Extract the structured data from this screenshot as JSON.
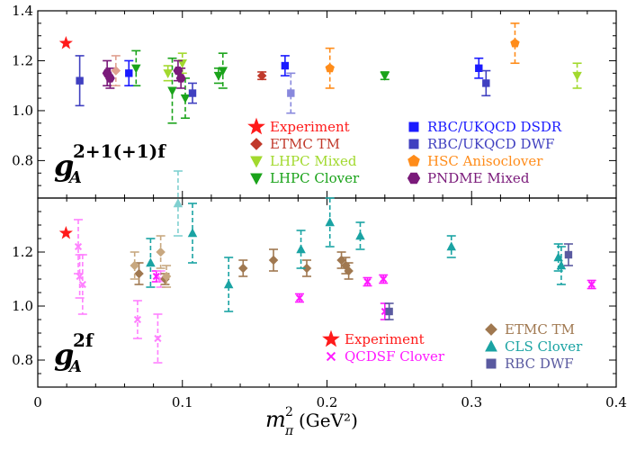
{
  "chart_data": [
    {
      "type": "scatter",
      "panel": "top",
      "panel_label": {
        "base": "g",
        "sub": "A",
        "sup": "2+1(+1)f"
      },
      "xlim": [
        0,
        0.4
      ],
      "ylim": [
        0.65,
        1.4
      ],
      "yticks": [
        0.8,
        1.0,
        1.2,
        1.4
      ],
      "legend_placement": "bottom-right",
      "series": [
        {
          "name": "Experiment",
          "color": "#ff1a1a",
          "marker": "star",
          "dashed": false,
          "points": [
            [
              0.0195,
              1.27,
              0
            ]
          ]
        },
        {
          "name": "ETMC TM",
          "color": "#c0392b",
          "marker": "diamond",
          "dashed": false,
          "points": [
            [
              0.155,
              1.14,
              0.015
            ]
          ]
        },
        {
          "name": "LHPC Mixed",
          "color": "#a2d92e",
          "marker": "tri-down",
          "dashed": true,
          "points": [
            [
              0.09,
              1.15,
              0.03
            ],
            [
              0.1,
              1.19,
              0.04
            ],
            [
              0.373,
              1.14,
              0.05
            ]
          ]
        },
        {
          "name": "LHPC Clover",
          "color": "#1aa31a",
          "marker": "tri-down",
          "dashed": true,
          "points": [
            [
              0.068,
              1.17,
              0.07
            ],
            [
              0.093,
              1.08,
              0.13
            ],
            [
              0.102,
              1.05,
              0.08
            ],
            [
              0.125,
              1.14,
              0.03
            ],
            [
              0.128,
              1.16,
              0.07
            ],
            [
              0.24,
              1.14,
              0.015
            ]
          ]
        },
        {
          "name": "RBC/UKQCD DSDR",
          "color": "#1a1aff",
          "marker": "square",
          "dashed": false,
          "points": [
            [
              0.063,
              1.15,
              0.05
            ],
            [
              0.171,
              1.18,
              0.04
            ],
            [
              0.305,
              1.17,
              0.04
            ]
          ]
        },
        {
          "name": "RBC/UKQCD DWF",
          "color": "#4040c0",
          "marker": "square",
          "dashed": false,
          "points": [
            [
              0.029,
              1.12,
              0.1
            ],
            [
              0.107,
              1.07,
              0.04
            ],
            [
              0.31,
              1.11,
              0.05
            ]
          ]
        },
        {
          "name": "HSC Anisoclover",
          "color": "#ff8c1a",
          "marker": "pentagon",
          "dashed": true,
          "points": [
            [
              0.202,
              1.17,
              0.08
            ],
            [
              0.33,
              1.27,
              0.08
            ]
          ]
        },
        {
          "name": "PNDME Mixed",
          "color": "#7a1a7a",
          "marker": "hexagon",
          "dashed": false,
          "points": [
            [
              0.048,
              1.15,
              0.05
            ],
            [
              0.05,
              1.13,
              0.04
            ],
            [
              0.097,
              1.16,
              0.04
            ],
            [
              0.099,
              1.13,
              0.04
            ]
          ]
        },
        {
          "name": "",
          "color": "#8888dd",
          "marker": "square",
          "dashed": true,
          "points": [
            [
              0.175,
              1.07,
              0.08
            ]
          ]
        },
        {
          "name": "",
          "color": "#e0a090",
          "marker": "diamond",
          "dashed": true,
          "points": [
            [
              0.054,
              1.16,
              0.06
            ]
          ]
        }
      ]
    },
    {
      "type": "scatter",
      "panel": "bottom",
      "panel_label": {
        "base": "g",
        "sub": "A",
        "sup": "2f"
      },
      "xlim": [
        0,
        0.4
      ],
      "ylim": [
        0.7,
        1.4
      ],
      "xticks": [
        0,
        0.1,
        0.2,
        0.3,
        0.4
      ],
      "yticks": [
        0.8,
        1.0,
        1.2
      ],
      "xlabel": {
        "base": "m",
        "sub": "π",
        "sup": "2",
        "unit": "(GeV²)"
      },
      "legend_placement": "bottom-right",
      "series": [
        {
          "name": "Experiment",
          "color": "#ff1a1a",
          "marker": "star",
          "dashed": false,
          "points": [
            [
              0.0195,
              1.27,
              0
            ]
          ]
        },
        {
          "name": "QCDSF Clover",
          "color": "#ff1aff",
          "marker": "x",
          "dashed": false,
          "points": [
            [
              0.082,
              1.11,
              0.02
            ],
            [
              0.181,
              1.03,
              0.015
            ],
            [
              0.228,
              1.09,
              0.015
            ],
            [
              0.239,
              1.1,
              0.015
            ],
            [
              0.24,
              0.98,
              0.03
            ],
            [
              0.383,
              1.08,
              0.015
            ]
          ]
        },
        {
          "name": "",
          "color": "#ff80ff",
          "marker": "x",
          "dashed": true,
          "points": [
            [
              0.028,
              1.22,
              0.1
            ],
            [
              0.029,
              1.11,
              0.08
            ],
            [
              0.031,
              1.08,
              0.11
            ],
            [
              0.069,
              0.95,
              0.07
            ],
            [
              0.083,
              0.88,
              0.09
            ],
            [
              0.085,
              1.1,
              0.03
            ]
          ]
        },
        {
          "name": "ETMC TM",
          "color": "#a07850",
          "marker": "diamond",
          "dashed": false,
          "points": [
            [
              0.07,
              1.12,
              0.04
            ],
            [
              0.088,
              1.1,
              0.02
            ],
            [
              0.142,
              1.14,
              0.03
            ],
            [
              0.163,
              1.17,
              0.04
            ],
            [
              0.186,
              1.14,
              0.03
            ],
            [
              0.21,
              1.17,
              0.03
            ],
            [
              0.213,
              1.15,
              0.03
            ],
            [
              0.215,
              1.13,
              0.03
            ]
          ]
        },
        {
          "name": "",
          "color": "#c8a880",
          "marker": "diamond",
          "dashed": true,
          "points": [
            [
              0.067,
              1.15,
              0.05
            ],
            [
              0.085,
              1.2,
              0.06
            ],
            [
              0.089,
              1.11,
              0.04
            ]
          ]
        },
        {
          "name": "CLS Clover",
          "color": "#1aa3a3",
          "marker": "tri-up",
          "dashed": true,
          "points": [
            [
              0.078,
              1.16,
              0.09
            ],
            [
              0.107,
              1.27,
              0.11
            ],
            [
              0.132,
              1.08,
              0.1
            ],
            [
              0.182,
              1.21,
              0.07
            ],
            [
              0.202,
              1.31,
              0.09
            ],
            [
              0.223,
              1.26,
              0.05
            ],
            [
              0.286,
              1.22,
              0.04
            ],
            [
              0.36,
              1.18,
              0.05
            ],
            [
              0.362,
              1.15,
              0.07
            ]
          ]
        },
        {
          "name": "",
          "color": "#80d0d0",
          "marker": "tri-up",
          "dashed": true,
          "points": [
            [
              0.097,
              1.38,
              0.12
            ]
          ]
        },
        {
          "name": "RBC DWF",
          "color": "#5a5aa0",
          "marker": "square",
          "dashed": false,
          "points": [
            [
              0.243,
              0.98,
              0.03
            ],
            [
              0.367,
              1.19,
              0.04
            ]
          ]
        }
      ]
    }
  ]
}
